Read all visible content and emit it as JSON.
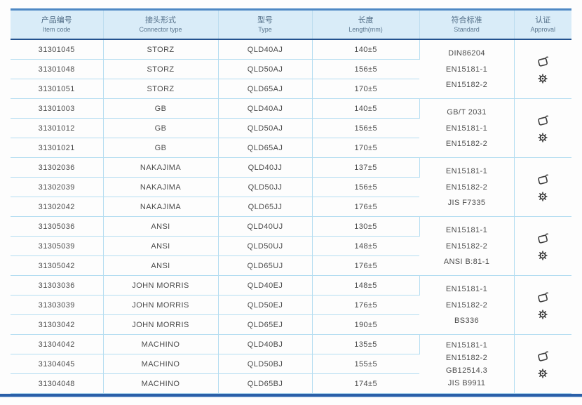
{
  "colors": {
    "header_bg": "#d9ecf8",
    "header_top_border": "#4e88c4",
    "header_bottom_border": "#24528f",
    "grid_line": "#b4ddf1",
    "bottom_bar": "#2a5fa8",
    "header_text": "#4f6b85",
    "body_text": "#4b4b4b"
  },
  "table": {
    "columns": [
      {
        "zh": "产品编号",
        "en": "Item code"
      },
      {
        "zh": "接头形式",
        "en": "Connector type"
      },
      {
        "zh": "型号",
        "en": "Type"
      },
      {
        "zh": "长度",
        "en": "Length(mm)"
      },
      {
        "zh": "符合标准",
        "en": "Standard"
      },
      {
        "zh": "认证",
        "en": "Approval"
      }
    ],
    "groups": [
      {
        "rows": [
          {
            "item_code": "31301045",
            "connector": "STORZ",
            "type": "QLD40AJ",
            "length": "140±5"
          },
          {
            "item_code": "31301048",
            "connector": "STORZ",
            "type": "QLD50AJ",
            "length": "156±5"
          },
          {
            "item_code": "31301051",
            "connector": "STORZ",
            "type": "QLD65AJ",
            "length": "170±5"
          }
        ],
        "standards": [
          "DIN86204",
          "EN15181-1",
          "EN15182-2"
        ],
        "approval_icons": [
          "certificate-stamp-icon",
          "gear-icon"
        ]
      },
      {
        "rows": [
          {
            "item_code": "31301003",
            "connector": "GB",
            "type": "QLD40AJ",
            "length": "140±5"
          },
          {
            "item_code": "31301012",
            "connector": "GB",
            "type": "QLD50AJ",
            "length": "156±5"
          },
          {
            "item_code": "31301021",
            "connector": "GB",
            "type": "QLD65AJ",
            "length": "170±5"
          }
        ],
        "standards": [
          "GB/T 2031",
          "EN15181-1",
          "EN15182-2"
        ],
        "approval_icons": [
          "certificate-stamp-icon",
          "gear-icon"
        ]
      },
      {
        "rows": [
          {
            "item_code": "31302036",
            "connector": "NAKAJIMA",
            "type": "QLD40JJ",
            "length": "137±5"
          },
          {
            "item_code": "31302039",
            "connector": "NAKAJIMA",
            "type": "QLD50JJ",
            "length": "156±5"
          },
          {
            "item_code": "31302042",
            "connector": "NAKAJIMA",
            "type": "QLD65JJ",
            "length": "176±5"
          }
        ],
        "standards": [
          "EN15181-1",
          "EN15182-2",
          "JIS F7335"
        ],
        "approval_icons": [
          "certificate-stamp-icon",
          "gear-icon"
        ]
      },
      {
        "rows": [
          {
            "item_code": "31305036",
            "connector": "ANSI",
            "type": "QLD40UJ",
            "length": "130±5"
          },
          {
            "item_code": "31305039",
            "connector": "ANSI",
            "type": "QLD50UJ",
            "length": "148±5"
          },
          {
            "item_code": "31305042",
            "connector": "ANSI",
            "type": "QLD65UJ",
            "length": "176±5"
          }
        ],
        "standards": [
          "EN15181-1",
          "EN15182-2",
          "ANSI B:81-1"
        ],
        "approval_icons": [
          "certificate-stamp-icon",
          "gear-icon"
        ]
      },
      {
        "rows": [
          {
            "item_code": "31303036",
            "connector": "JOHN MORRIS",
            "type": "QLD40EJ",
            "length": "148±5"
          },
          {
            "item_code": "31303039",
            "connector": "JOHN MORRIS",
            "type": "QLD50EJ",
            "length": "176±5"
          },
          {
            "item_code": "31303042",
            "connector": "JOHN MORRIS",
            "type": "QLD65EJ",
            "length": "190±5"
          }
        ],
        "standards": [
          "EN15181-1",
          "EN15182-2",
          "BS336"
        ],
        "approval_icons": [
          "certificate-stamp-icon",
          "gear-icon"
        ]
      },
      {
        "rows": [
          {
            "item_code": "31304042",
            "connector": "MACHINO",
            "type": "QLD40BJ",
            "length": "135±5"
          },
          {
            "item_code": "31304045",
            "connector": "MACHINO",
            "type": "QLD50BJ",
            "length": "155±5"
          },
          {
            "item_code": "31304048",
            "connector": "MACHINO",
            "type": "QLD65BJ",
            "length": "174±5"
          }
        ],
        "standards": [
          "EN15181-1",
          "EN15182-2",
          "GB12514.3",
          "JIS B9911"
        ],
        "approval_icons": [
          "certificate-stamp-icon",
          "gear-icon"
        ]
      }
    ]
  }
}
